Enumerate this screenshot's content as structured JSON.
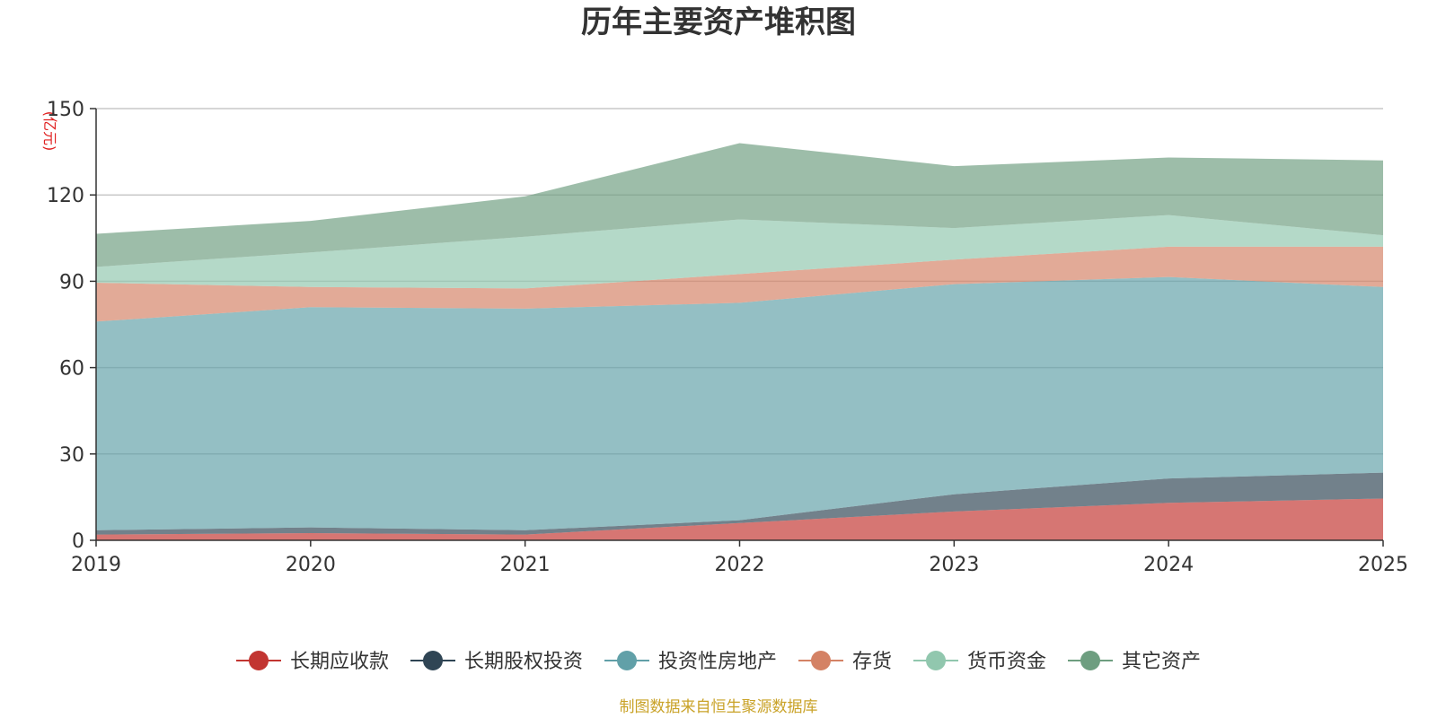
{
  "chart_data": {
    "type": "area",
    "stacked": true,
    "title": "历年主要资产堆积图",
    "ylabel": "(亿元)",
    "xlabel": "",
    "x": [
      "2019",
      "2020",
      "2021",
      "2022",
      "2023",
      "2024",
      "2025"
    ],
    "ylim": [
      0,
      150
    ],
    "yticks": [
      0,
      30,
      60,
      90,
      120,
      150
    ],
    "grid": true,
    "legend_position": "bottom",
    "series": [
      {
        "name": "长期应收款",
        "color": "#c23531",
        "values": [
          2,
          2.5,
          2,
          6,
          10,
          13,
          14.5
        ]
      },
      {
        "name": "长期股权投资",
        "color": "#2f4554",
        "values": [
          1.5,
          2,
          1.5,
          1,
          6,
          8.5,
          9
        ]
      },
      {
        "name": "投资性房地产",
        "color": "#61a0a8",
        "values": [
          72.5,
          76.5,
          77,
          75.5,
          73,
          70,
          64.5
        ]
      },
      {
        "name": "存货",
        "color": "#d48265",
        "values": [
          13.5,
          7,
          7,
          10,
          8.5,
          10.5,
          14
        ]
      },
      {
        "name": "货币资金",
        "color": "#91c7ae",
        "values": [
          5.5,
          12,
          18,
          19,
          11,
          11,
          4
        ]
      },
      {
        "name": "其它资产",
        "color": "#6e9e80",
        "values": [
          11.5,
          11,
          14,
          26.5,
          21.5,
          20,
          26
        ]
      }
    ],
    "source": "制图数据来自恒生聚源数据库"
  }
}
